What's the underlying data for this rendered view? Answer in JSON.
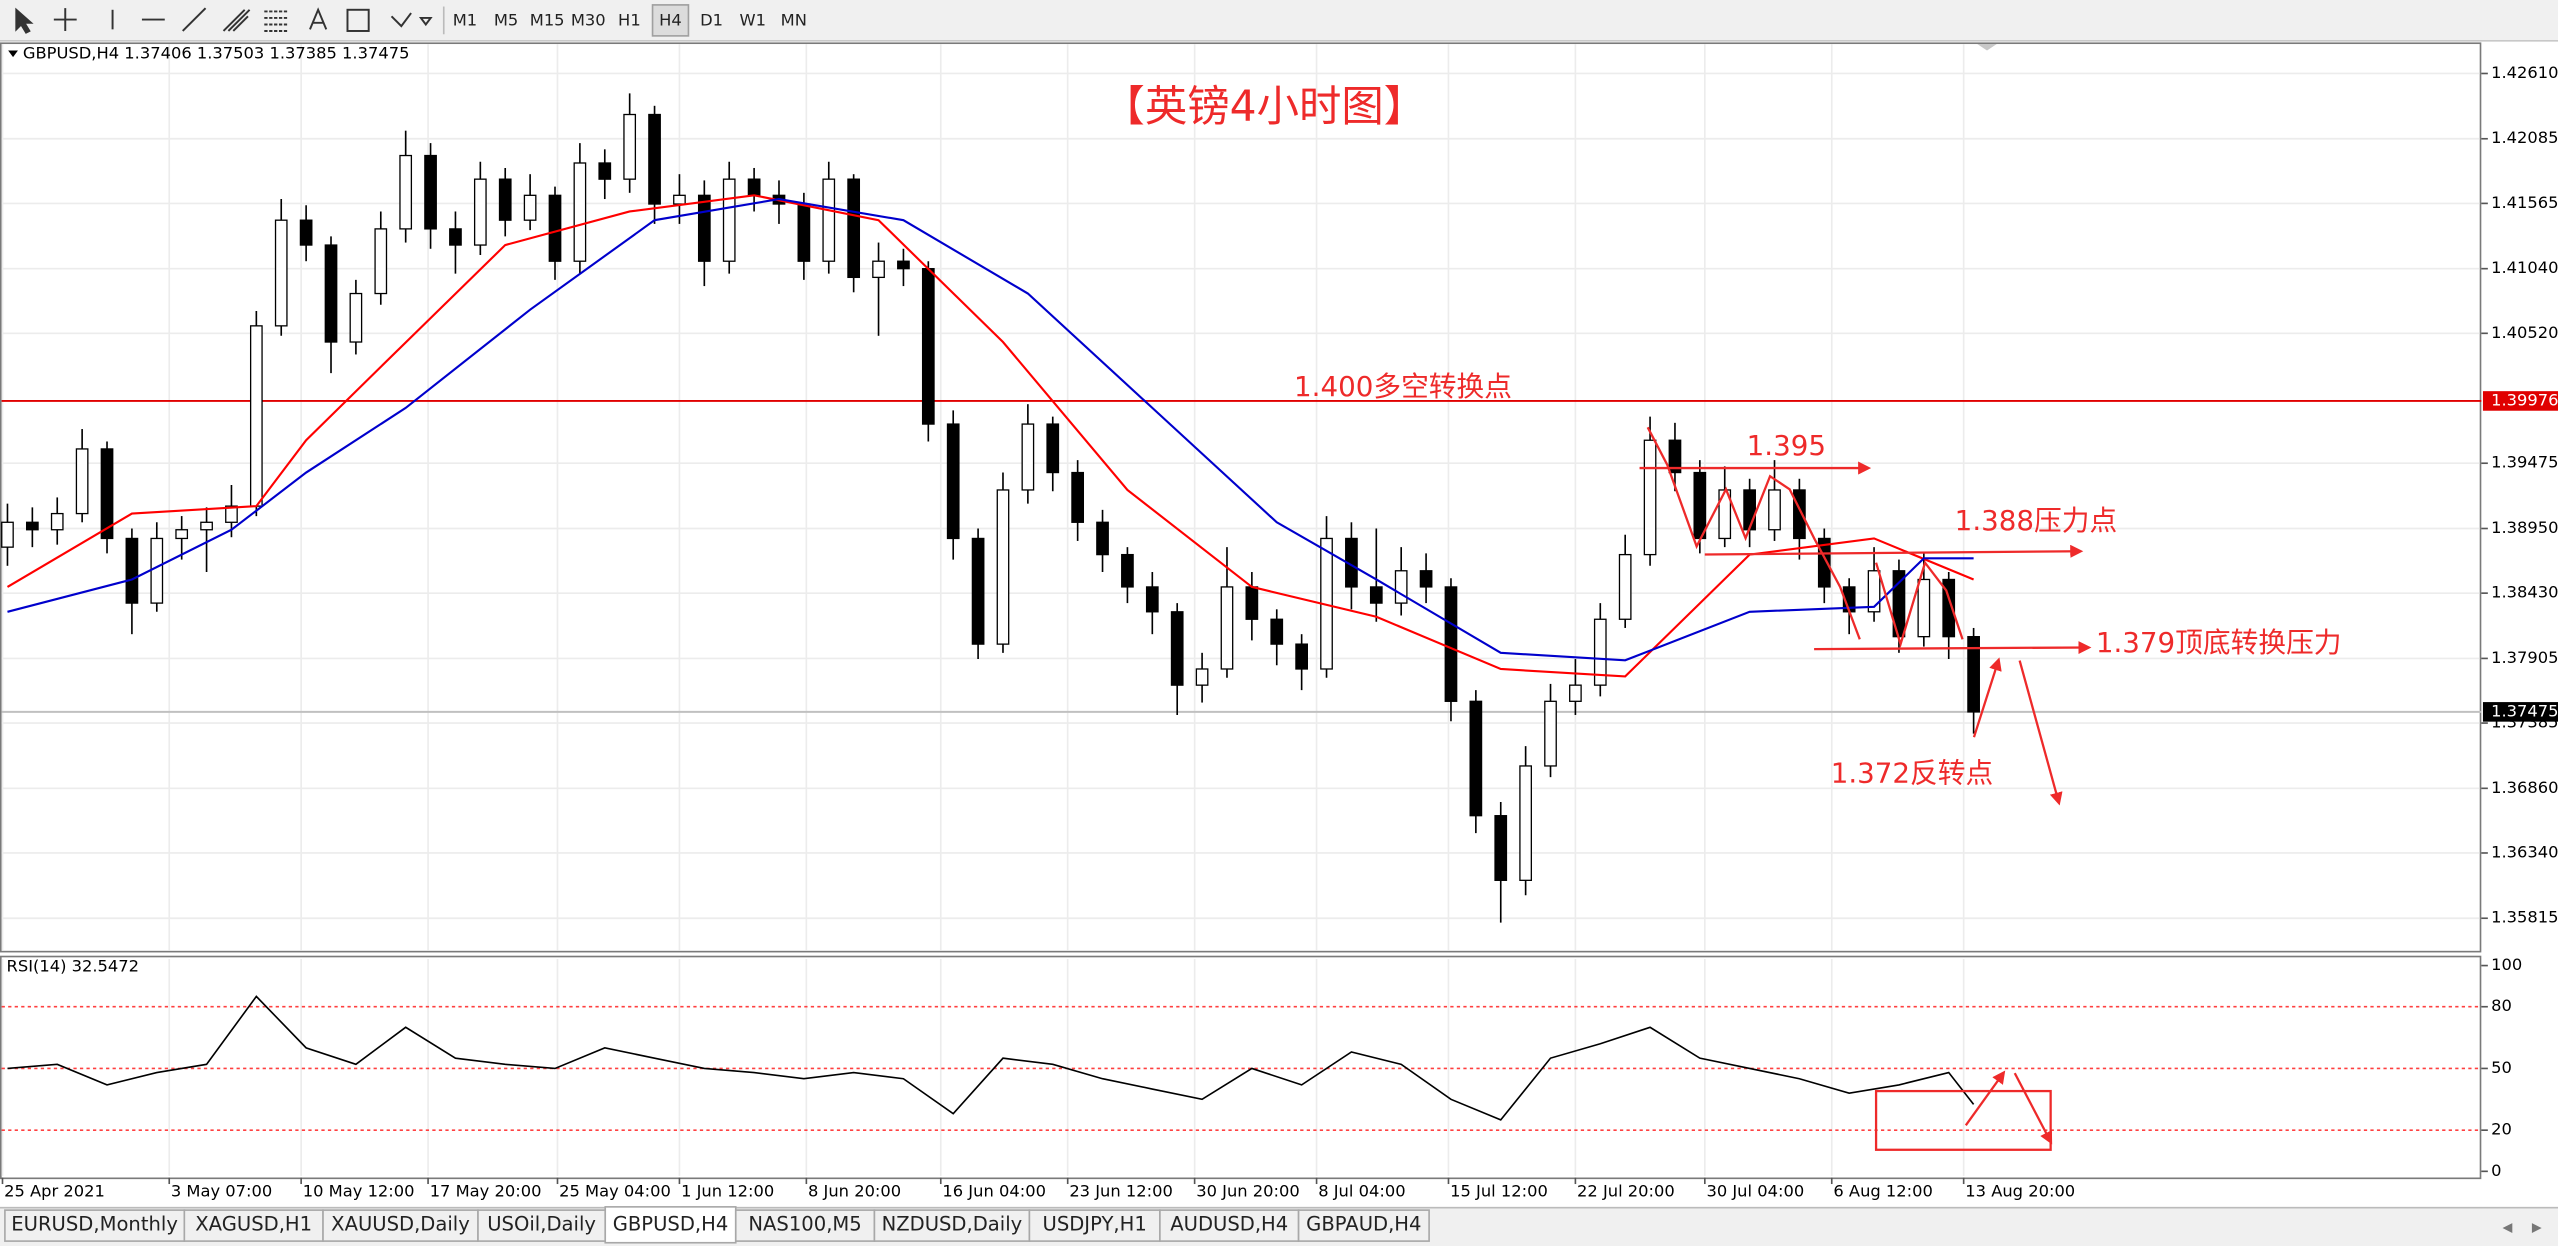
{
  "toolbar": {
    "timeframes": [
      "M1",
      "M5",
      "M15",
      "M30",
      "H1",
      "H4",
      "D1",
      "W1",
      "MN"
    ],
    "active": "H4"
  },
  "tabs": {
    "items": [
      "EURUSD,Monthly",
      "XAGUSD,H1",
      "XAUUSD,Daily",
      "USOil,Daily",
      "GBPUSD,H4",
      "NAS100,M5",
      "NZDUSD,Daily",
      "USDJPY,H1",
      "AUDUSD,H4",
      "GBPAUD,H4"
    ],
    "active": "GBPUSD,H4"
  },
  "chart_data": {
    "type": "candlestick",
    "symbol_label": "GBPUSD,H4  1.37406 1.37503 1.37385 1.37475",
    "annotations": {
      "title": "【英镑4小时图】",
      "level_1400": "1.400多空转换点",
      "level_1395": "1.395",
      "level_1388": "1.388压力点",
      "level_1379": "1.379顶底转换压力",
      "level_1372": "1.372反转点"
    },
    "xlim": [
      -0.3,
      99.4
    ],
    "xticks": [
      {
        "value": -0.2,
        "label": "25 Apr 2021"
      },
      {
        "value": 6.5,
        "label": "3 May 07:00"
      },
      {
        "value": 11.8,
        "label": "10 May 12:00"
      },
      {
        "value": 16.9,
        "label": "17 May 20:00"
      },
      {
        "value": 22.1,
        "label": "25 May 04:00"
      },
      {
        "value": 27.0,
        "label": "1 Jun 12:00"
      },
      {
        "value": 32.1,
        "label": "8 Jun 20:00"
      },
      {
        "value": 37.5,
        "label": "16 Jun 04:00"
      },
      {
        "value": 42.6,
        "label": "23 Jun 12:00"
      },
      {
        "value": 47.7,
        "label": "30 Jun 20:00"
      },
      {
        "value": 52.6,
        "label": "8 Jul 04:00"
      },
      {
        "value": 57.9,
        "label": "15 Jul 12:00"
      },
      {
        "value": 63.0,
        "label": "22 Jul 20:00"
      },
      {
        "value": 68.2,
        "label": "30 Jul 04:00"
      },
      {
        "value": 73.3,
        "label": "6 Aug 12:00"
      },
      {
        "value": 78.6,
        "label": "13 Aug 20:00"
      }
    ],
    "ylim": [
      1.3554,
      1.4286
    ],
    "yticks": [
      {
        "value": 1.4261,
        "label": "1.42610"
      },
      1.42085,
      1.41565,
      {
        "value": 1.4104,
        "label": "1.41040"
      },
      {
        "value": 1.4052,
        "label": "1.40520"
      },
      1.39475,
      {
        "value": 1.3895,
        "label": "1.38950"
      },
      {
        "value": 1.3843,
        "label": "1.38430"
      },
      1.37905,
      1.37385,
      {
        "value": 1.3686,
        "label": "1.36860"
      },
      {
        "value": 1.3634,
        "label": "1.36340"
      },
      1.35815
    ],
    "grid": true,
    "up_color": "#ffffff",
    "down_color": "#000000",
    "wick_color": "#000000",
    "open": [
      1.388,
      1.39,
      1.3894,
      1.3907,
      1.3959,
      1.3887,
      1.3835,
      1.3887,
      1.3894,
      1.39,
      1.3913,
      1.4058,
      1.4143,
      1.4123,
      1.4045,
      1.4084,
      1.4136,
      1.4195,
      1.4136,
      1.4123,
      1.4176,
      1.4143,
      1.4163,
      1.411,
      1.4189,
      1.4176,
      1.4228,
      1.4156,
      1.4163,
      1.411,
      1.4176,
      1.4163,
      1.4156,
      1.411,
      1.4176,
      1.4097,
      1.411,
      1.4104,
      1.3979,
      1.3887,
      1.3802,
      1.3926,
      1.3979,
      1.394,
      1.39,
      1.3874,
      1.3848,
      1.3828,
      1.3769,
      1.3782,
      1.3848,
      1.3822,
      1.3802,
      1.3782,
      1.3887,
      1.3848,
      1.3835,
      1.3861,
      1.3848,
      1.3756,
      1.3664,
      1.3612,
      1.3704,
      1.3756,
      1.3769,
      1.3822,
      1.3874,
      1.3966,
      1.394,
      1.3887,
      1.3926,
      1.3894,
      1.3926,
      1.3887,
      1.3848,
      1.3828,
      1.3861,
      1.3808,
      1.3854,
      1.3808
    ],
    "high": [
      1.3915,
      1.3912,
      1.392,
      1.3975,
      1.3965,
      1.3895,
      1.39,
      1.3905,
      1.3912,
      1.393,
      1.407,
      1.416,
      1.4155,
      1.413,
      1.4095,
      1.415,
      1.4215,
      1.4205,
      1.415,
      1.419,
      1.4185,
      1.418,
      1.417,
      1.4205,
      1.42,
      1.4245,
      1.4235,
      1.418,
      1.4175,
      1.419,
      1.4185,
      1.4175,
      1.4165,
      1.419,
      1.418,
      1.4125,
      1.412,
      1.411,
      1.399,
      1.3895,
      1.394,
      1.3995,
      1.3985,
      1.395,
      1.391,
      1.388,
      1.386,
      1.3835,
      1.3795,
      1.388,
      1.386,
      1.383,
      1.381,
      1.3905,
      1.39,
      1.3895,
      1.388,
      1.3875,
      1.3855,
      1.3765,
      1.3675,
      1.372,
      1.377,
      1.379,
      1.3835,
      1.389,
      1.3985,
      1.398,
      1.395,
      1.3945,
      1.3935,
      1.395,
      1.3935,
      1.3895,
      1.3855,
      1.388,
      1.387,
      1.3875,
      1.386,
      1.3815
    ],
    "low": [
      1.3865,
      1.388,
      1.3882,
      1.39,
      1.3875,
      1.381,
      1.3828,
      1.387,
      1.386,
      1.3888,
      1.3905,
      1.405,
      1.411,
      1.402,
      1.4035,
      1.4075,
      1.4125,
      1.412,
      1.41,
      1.4115,
      1.413,
      1.4135,
      1.4095,
      1.41,
      1.416,
      1.4165,
      1.414,
      1.414,
      1.409,
      1.41,
      1.415,
      1.414,
      1.4095,
      1.41,
      1.4085,
      1.405,
      1.409,
      1.3965,
      1.387,
      1.379,
      1.3795,
      1.3915,
      1.3925,
      1.3885,
      1.386,
      1.3835,
      1.381,
      1.3745,
      1.3755,
      1.3775,
      1.3805,
      1.3785,
      1.3765,
      1.3775,
      1.383,
      1.382,
      1.3825,
      1.3835,
      1.374,
      1.365,
      1.3578,
      1.36,
      1.3695,
      1.3745,
      1.376,
      1.3815,
      1.3865,
      1.3925,
      1.3875,
      1.388,
      1.388,
      1.3885,
      1.387,
      1.3835,
      1.381,
      1.382,
      1.3795,
      1.38,
      1.379,
      1.373
    ],
    "close": [
      1.39,
      1.3894,
      1.3907,
      1.3959,
      1.3887,
      1.3835,
      1.3887,
      1.3894,
      1.39,
      1.3913,
      1.4058,
      1.4143,
      1.4123,
      1.4045,
      1.4084,
      1.4136,
      1.4195,
      1.4136,
      1.4123,
      1.4176,
      1.4143,
      1.4163,
      1.411,
      1.4189,
      1.4176,
      1.4228,
      1.4156,
      1.4163,
      1.411,
      1.4176,
      1.4163,
      1.4156,
      1.411,
      1.4176,
      1.4097,
      1.411,
      1.4104,
      1.3979,
      1.3887,
      1.3802,
      1.3926,
      1.3979,
      1.394,
      1.39,
      1.3874,
      1.3848,
      1.3828,
      1.3769,
      1.3782,
      1.3848,
      1.3822,
      1.3802,
      1.3782,
      1.3887,
      1.3848,
      1.3835,
      1.3861,
      1.3848,
      1.3756,
      1.3664,
      1.3612,
      1.3704,
      1.3756,
      1.3769,
      1.3822,
      1.3874,
      1.3966,
      1.394,
      1.3887,
      1.3926,
      1.3894,
      1.3926,
      1.3887,
      1.3848,
      1.3828,
      1.3861,
      1.3808,
      1.3854,
      1.3808,
      1.37475
    ],
    "overlays": [
      {
        "color": "#ff0000",
        "x": [
          0,
          5,
          10,
          12,
          15,
          20,
          25,
          30,
          35,
          40,
          45,
          50,
          55,
          60,
          65,
          70,
          75,
          79
        ],
        "values": [
          1.3848,
          1.3907,
          1.3913,
          1.3966,
          1.4025,
          1.4123,
          1.415,
          1.4163,
          1.4143,
          1.4045,
          1.3926,
          1.3848,
          1.3824,
          1.3782,
          1.3776,
          1.3874,
          1.3887,
          1.3854
        ]
      },
      {
        "color": "#0000cc",
        "x": [
          0,
          5,
          9,
          12,
          16,
          21,
          26,
          31,
          36,
          41,
          46,
          51,
          55,
          60,
          65,
          70,
          75,
          77,
          79
        ],
        "values": [
          1.3828,
          1.3854,
          1.3894,
          1.394,
          1.3992,
          1.4071,
          1.4143,
          1.416,
          1.4143,
          1.4084,
          1.3992,
          1.39,
          1.3854,
          1.3795,
          1.3789,
          1.3828,
          1.3832,
          1.3871,
          1.3871
        ]
      }
    ],
    "price_lines": [
      {
        "value": 1.39976,
        "color": "#e00000",
        "label_color": "#e00000"
      },
      {
        "value": 1.37475,
        "color": "#c0c0c0",
        "label_color": "#000000"
      }
    ],
    "rsi": {
      "label": "RSI(14) 32.5472",
      "color": "#000000",
      "ylim": [
        -3,
        104
      ],
      "yticks": [
        100,
        80,
        50,
        20,
        0
      ],
      "levels": [
        80,
        50,
        20
      ],
      "level_color": "#ff4040",
      "x": [
        0,
        2,
        4,
        6,
        8,
        10,
        12,
        14,
        16,
        18,
        20,
        22,
        24,
        26,
        28,
        30,
        32,
        34,
        36,
        38,
        40,
        42,
        44,
        46,
        48,
        50,
        52,
        54,
        56,
        58,
        60,
        62,
        64,
        66,
        68,
        70,
        72,
        74,
        76,
        78,
        79
      ],
      "values": [
        50,
        52,
        42,
        48,
        52,
        85,
        60,
        52,
        70,
        55,
        52,
        50,
        60,
        55,
        50,
        48,
        45,
        48,
        45,
        28,
        55,
        52,
        45,
        40,
        35,
        50,
        42,
        58,
        52,
        35,
        25,
        55,
        62,
        70,
        55,
        50,
        45,
        38,
        42,
        48,
        32.5472
      ]
    }
  }
}
